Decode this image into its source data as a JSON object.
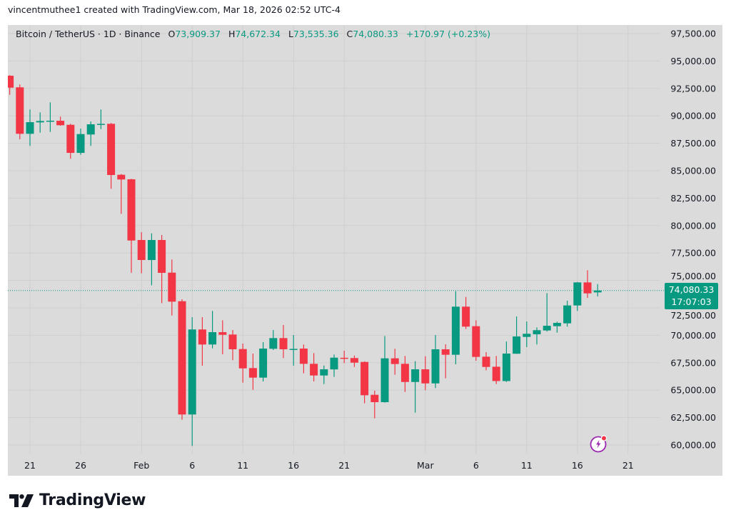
{
  "credit": "vincentmuthee1 created with TradingView.com, Mar 18, 2026 02:52 UTC-4",
  "legend": {
    "symbol": "Bitcoin / TetherUS · 1D · Binance",
    "open_label": "O",
    "open": "73,909.37",
    "high_label": "H",
    "high": "74,672.34",
    "low_label": "L",
    "low": "73,535.36",
    "close_label": "C",
    "close": "74,080.33",
    "change": "+170.97 (+0.23%)"
  },
  "price_tag": {
    "price": "74,080.33",
    "countdown": "17:07:03"
  },
  "brand": {
    "logo_text": "TradingView"
  },
  "colors": {
    "up": "#089981",
    "down": "#f23645",
    "background": "#dbdbdb",
    "alert": "#9c27b0"
  },
  "icons": {
    "alert": "lightning-alert-icon",
    "logo": "tradingview-logo-icon"
  },
  "chart_data": {
    "type": "candlestick",
    "title": "Bitcoin / TetherUS · 1D · Binance",
    "ylim": [
      59000,
      98500
    ],
    "grid": true,
    "last_price": 74080.33,
    "y_ticks": [
      "97,500.00",
      "95,000.00",
      "92,500.00",
      "90,000.00",
      "87,500.00",
      "85,000.00",
      "82,500.00",
      "80,000.00",
      "77,500.00",
      "75,000.00",
      "72,500.00",
      "70,000.00",
      "67,500.00",
      "65,000.00",
      "62,500.00",
      "60,000.00"
    ],
    "x_ticks": [
      {
        "label": "21",
        "date": "2026-01-21"
      },
      {
        "label": "26",
        "date": "2026-01-26"
      },
      {
        "label": "Feb",
        "date": "2026-02-01"
      },
      {
        "label": "6",
        "date": "2026-02-06"
      },
      {
        "label": "11",
        "date": "2026-02-11"
      },
      {
        "label": "16",
        "date": "2026-02-16"
      },
      {
        "label": "21",
        "date": "2026-02-21"
      },
      {
        "label": "Mar",
        "date": "2026-03-01"
      },
      {
        "label": "6",
        "date": "2026-03-06"
      },
      {
        "label": "11",
        "date": "2026-03-11"
      },
      {
        "label": "16",
        "date": "2026-03-16"
      },
      {
        "label": "21",
        "date": "2026-03-21"
      }
    ],
    "columns": [
      "date",
      "open",
      "high",
      "low",
      "close"
    ],
    "rows": [
      [
        "2026-01-19",
        93660,
        93700,
        91920,
        92570
      ],
      [
        "2026-01-20",
        92600,
        92860,
        87860,
        88365
      ],
      [
        "2026-01-21",
        88365,
        90580,
        87260,
        89425
      ],
      [
        "2026-01-22",
        89405,
        90320,
        88470,
        89535
      ],
      [
        "2026-01-23",
        89500,
        91230,
        88535,
        89560
      ],
      [
        "2026-01-24",
        89555,
        89925,
        89100,
        89145
      ],
      [
        "2026-01-25",
        89185,
        89275,
        86085,
        86626
      ],
      [
        "2026-01-26",
        86626,
        88840,
        86455,
        88340
      ],
      [
        "2026-01-27",
        88300,
        89490,
        87260,
        89230
      ],
      [
        "2026-01-28",
        89200,
        90580,
        88800,
        89270
      ],
      [
        "2026-01-29",
        89275,
        89350,
        83350,
        84610
      ],
      [
        "2026-01-30",
        84630,
        84700,
        81070,
        84200
      ],
      [
        "2026-01-31",
        84220,
        84260,
        75690,
        78640
      ],
      [
        "2026-02-01",
        78685,
        79400,
        75645,
        76860
      ],
      [
        "2026-02-02",
        76860,
        79290,
        74560,
        78685
      ],
      [
        "2026-02-03",
        78685,
        79140,
        72935,
        75690
      ],
      [
        "2026-02-04",
        75710,
        76905,
        71800,
        73065
      ],
      [
        "2026-02-05",
        73105,
        73280,
        62300,
        62780
      ],
      [
        "2026-02-06",
        62780,
        71650,
        59915,
        70530
      ],
      [
        "2026-02-07",
        70530,
        71650,
        67225,
        69160
      ],
      [
        "2026-02-08",
        69160,
        72220,
        68810,
        70285
      ],
      [
        "2026-02-09",
        70285,
        71365,
        68270,
        70045
      ],
      [
        "2026-02-10",
        70070,
        70480,
        67730,
        68725
      ],
      [
        "2026-02-11",
        68745,
        69245,
        65680,
        66985
      ],
      [
        "2026-02-12",
        67010,
        68335,
        65030,
        66140
      ],
      [
        "2026-02-13",
        66140,
        69375,
        65795,
        68790
      ],
      [
        "2026-02-14",
        68770,
        70480,
        68660,
        69745
      ],
      [
        "2026-02-15",
        69745,
        70935,
        67925,
        68725
      ],
      [
        "2026-02-16",
        68700,
        70025,
        67225,
        68760
      ],
      [
        "2026-02-17",
        68790,
        69160,
        66535,
        67400
      ],
      [
        "2026-02-18",
        67400,
        68375,
        65795,
        66335
      ],
      [
        "2026-02-19",
        66335,
        67245,
        65555,
        66900
      ],
      [
        "2026-02-20",
        66890,
        68245,
        66210,
        67960
      ],
      [
        "2026-02-21",
        67950,
        68595,
        67465,
        67900
      ],
      [
        "2026-02-22",
        67925,
        68155,
        67115,
        67505
      ],
      [
        "2026-02-23",
        67570,
        67620,
        63800,
        64535
      ],
      [
        "2026-02-24",
        64575,
        64950,
        62430,
        63905
      ],
      [
        "2026-02-25",
        63905,
        69930,
        63860,
        67900
      ],
      [
        "2026-02-26",
        67900,
        68770,
        66400,
        67380
      ],
      [
        "2026-02-27",
        67400,
        68110,
        64840,
        65745
      ],
      [
        "2026-02-28",
        65745,
        67640,
        62950,
        66900
      ],
      [
        "2026-03-01",
        66900,
        68090,
        64995,
        65615
      ],
      [
        "2026-03-02",
        65615,
        70025,
        65190,
        68725
      ],
      [
        "2026-03-03",
        68725,
        69180,
        66080,
        68225
      ],
      [
        "2026-03-04",
        68225,
        74015,
        67355,
        72610
      ],
      [
        "2026-03-05",
        72610,
        73495,
        70570,
        70790
      ],
      [
        "2026-03-06",
        70830,
        71365,
        67680,
        68030
      ],
      [
        "2026-03-07",
        68050,
        68465,
        66810,
        67115
      ],
      [
        "2026-03-08",
        67135,
        68115,
        65555,
        65830
      ],
      [
        "2026-03-09",
        65830,
        69440,
        65750,
        68335
      ],
      [
        "2026-03-10",
        68320,
        71715,
        68300,
        69895
      ],
      [
        "2026-03-11",
        69850,
        71260,
        68920,
        70140
      ],
      [
        "2026-03-12",
        70090,
        70715,
        69160,
        70465
      ],
      [
        "2026-03-13",
        70440,
        73840,
        70335,
        70870
      ],
      [
        "2026-03-14",
        70830,
        71240,
        70245,
        71130
      ],
      [
        "2026-03-15",
        71090,
        73150,
        70790,
        72720
      ],
      [
        "2026-03-16",
        72720,
        74850,
        72220,
        74820
      ],
      [
        "2026-03-17",
        74820,
        75930,
        73400,
        73820
      ],
      [
        "2026-03-18",
        73909.37,
        74672.34,
        73535.36,
        74080.33
      ]
    ]
  }
}
